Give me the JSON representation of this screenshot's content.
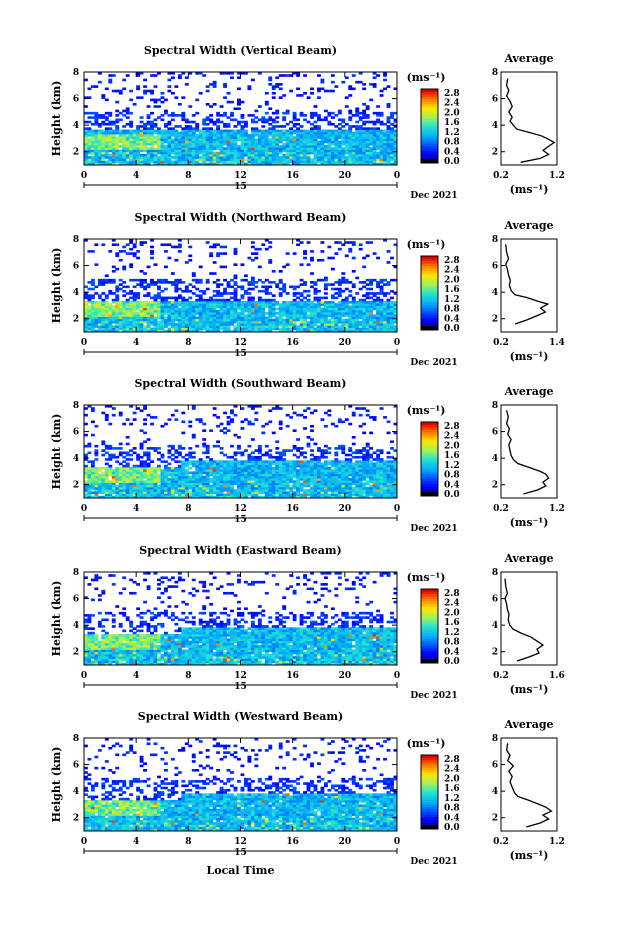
{
  "figure": {
    "xlabel": "Local Time",
    "date_label": "Dec 2021",
    "unit_label": "(ms⁻¹)",
    "avg_xlabel": "(ms⁻¹)",
    "avg_title": "Average",
    "ylabel": "Height (km)",
    "day_label": "15"
  },
  "chart_data": [
    {
      "type": "heatmap",
      "title": "Spectral Width (Vertical Beam)",
      "xlabel": "",
      "ylabel": "Height (km)",
      "x_ticks": [
        "0",
        "4",
        "8",
        "12",
        "16",
        "20",
        "0"
      ],
      "xlim": [
        0,
        24
      ],
      "y_ticks": [
        "2",
        "4",
        "6",
        "8"
      ],
      "ylim": [
        1,
        8
      ],
      "colorbar": {
        "ticks": [
          "0.0",
          "0.4",
          "0.8",
          "1.2",
          "1.6",
          "2.0",
          "2.4",
          "2.8"
        ],
        "range": [
          0,
          3.0
        ]
      },
      "average": {
        "x_ticks": [
          "0.2",
          "1.2"
        ],
        "xlim": [
          0.2,
          1.2
        ],
        "y_ticks": [
          "2",
          "4",
          "6",
          "8"
        ],
        "ylim": [
          1,
          8
        ],
        "profile": [
          [
            1.2,
            0.55
          ],
          [
            1.5,
            0.9
          ],
          [
            1.8,
            1.05
          ],
          [
            2.1,
            0.95
          ],
          [
            2.4,
            1.05
          ],
          [
            2.7,
            1.15
          ],
          [
            3.0,
            1.02
          ],
          [
            3.2,
            0.92
          ],
          [
            3.4,
            0.75
          ],
          [
            3.7,
            0.48
          ],
          [
            4.0,
            0.42
          ],
          [
            4.3,
            0.36
          ],
          [
            4.6,
            0.4
          ],
          [
            5.0,
            0.34
          ],
          [
            5.4,
            0.4
          ],
          [
            5.8,
            0.36
          ],
          [
            6.2,
            0.3
          ],
          [
            6.6,
            0.34
          ],
          [
            7.0,
            0.3
          ],
          [
            7.5,
            0.32
          ]
        ]
      }
    },
    {
      "type": "heatmap",
      "title": "Spectral Width (Northward Beam)",
      "xlabel": "",
      "ylabel": "Height (km)",
      "x_ticks": [
        "0",
        "4",
        "8",
        "12",
        "16",
        "20",
        "0"
      ],
      "xlim": [
        0,
        24
      ],
      "y_ticks": [
        "2",
        "4",
        "6",
        "8"
      ],
      "ylim": [
        1,
        8
      ],
      "colorbar": {
        "ticks": [
          "0.0",
          "0.4",
          "0.8",
          "1.2",
          "1.6",
          "2.0",
          "2.4",
          "2.8"
        ],
        "range": [
          0,
          3.0
        ]
      },
      "average": {
        "x_ticks": [
          "0.2",
          "1.4"
        ],
        "xlim": [
          0.2,
          1.4
        ],
        "y_ticks": [
          "2",
          "4",
          "6",
          "8"
        ],
        "ylim": [
          1,
          8
        ],
        "profile": [
          [
            1.6,
            0.5
          ],
          [
            1.9,
            0.75
          ],
          [
            2.2,
            0.95
          ],
          [
            2.5,
            1.15
          ],
          [
            2.8,
            1.05
          ],
          [
            3.1,
            1.2
          ],
          [
            3.3,
            1.0
          ],
          [
            3.6,
            0.75
          ],
          [
            3.8,
            0.5
          ],
          [
            4.1,
            0.42
          ],
          [
            4.5,
            0.38
          ],
          [
            4.9,
            0.4
          ],
          [
            5.3,
            0.36
          ],
          [
            5.7,
            0.34
          ],
          [
            6.1,
            0.3
          ],
          [
            6.5,
            0.36
          ],
          [
            7.0,
            0.32
          ],
          [
            7.6,
            0.3
          ]
        ]
      }
    },
    {
      "type": "heatmap",
      "title": "Spectral Width (Southward Beam)",
      "xlabel": "",
      "ylabel": "Height (km)",
      "x_ticks": [
        "0",
        "4",
        "8",
        "12",
        "16",
        "20",
        "0"
      ],
      "xlim": [
        0,
        24
      ],
      "y_ticks": [
        "2",
        "4",
        "6",
        "8"
      ],
      "ylim": [
        1,
        8
      ],
      "colorbar": {
        "ticks": [
          "0.0",
          "0.4",
          "0.8",
          "1.2",
          "1.6",
          "2.0",
          "2.4",
          "2.8"
        ],
        "range": [
          0,
          3.0
        ]
      },
      "average": {
        "x_ticks": [
          "0.2",
          "1.2"
        ],
        "xlim": [
          0.2,
          1.2
        ],
        "y_ticks": [
          "2",
          "4",
          "6",
          "8"
        ],
        "ylim": [
          1,
          8
        ],
        "profile": [
          [
            1.3,
            0.6
          ],
          [
            1.6,
            0.85
          ],
          [
            1.9,
            1.0
          ],
          [
            2.2,
            0.95
          ],
          [
            2.5,
            1.05
          ],
          [
            2.8,
            1.0
          ],
          [
            3.0,
            0.9
          ],
          [
            3.3,
            0.7
          ],
          [
            3.6,
            0.5
          ],
          [
            3.9,
            0.42
          ],
          [
            4.2,
            0.38
          ],
          [
            4.6,
            0.36
          ],
          [
            5.0,
            0.34
          ],
          [
            5.4,
            0.38
          ],
          [
            5.8,
            0.32
          ],
          [
            6.2,
            0.35
          ],
          [
            6.6,
            0.3
          ],
          [
            7.1,
            0.33
          ],
          [
            7.6,
            0.3
          ]
        ]
      }
    },
    {
      "type": "heatmap",
      "title": "Spectral Width (Eastward Beam)",
      "xlabel": "",
      "ylabel": "Height (km)",
      "x_ticks": [
        "0",
        "4",
        "8",
        "12",
        "16",
        "20",
        "0"
      ],
      "xlim": [
        0,
        24
      ],
      "y_ticks": [
        "2",
        "4",
        "6",
        "8"
      ],
      "ylim": [
        1,
        8
      ],
      "colorbar": {
        "ticks": [
          "0.0",
          "0.4",
          "0.8",
          "1.2",
          "1.6",
          "2.0",
          "2.4",
          "2.8"
        ],
        "range": [
          0,
          3.0
        ]
      },
      "average": {
        "x_ticks": [
          "0.2",
          "1.6"
        ],
        "xlim": [
          0.2,
          1.6
        ],
        "y_ticks": [
          "2",
          "4",
          "6",
          "8"
        ],
        "ylim": [
          1,
          8
        ],
        "profile": [
          [
            1.3,
            0.6
          ],
          [
            1.6,
            0.9
          ],
          [
            1.9,
            1.15
          ],
          [
            2.2,
            1.1
          ],
          [
            2.5,
            1.25
          ],
          [
            2.8,
            1.1
          ],
          [
            3.1,
            0.95
          ],
          [
            3.4,
            0.7
          ],
          [
            3.7,
            0.5
          ],
          [
            4.0,
            0.42
          ],
          [
            4.4,
            0.38
          ],
          [
            4.8,
            0.4
          ],
          [
            5.2,
            0.36
          ],
          [
            5.6,
            0.34
          ],
          [
            6.0,
            0.3
          ],
          [
            6.4,
            0.36
          ],
          [
            6.9,
            0.32
          ],
          [
            7.5,
            0.3
          ]
        ]
      }
    },
    {
      "type": "heatmap",
      "title": "Spectral Width (Westward Beam)",
      "xlabel": "Local Time",
      "ylabel": "Height (km)",
      "x_ticks": [
        "0",
        "4",
        "8",
        "12",
        "16",
        "20",
        "0"
      ],
      "xlim": [
        0,
        24
      ],
      "y_ticks": [
        "2",
        "4",
        "6",
        "8"
      ],
      "ylim": [
        1,
        8
      ],
      "colorbar": {
        "ticks": [
          "0.0",
          "0.4",
          "0.8",
          "1.2",
          "1.6",
          "2.0",
          "2.4",
          "2.8"
        ],
        "range": [
          0,
          3.0
        ]
      },
      "average": {
        "x_ticks": [
          "0.2",
          "1.2"
        ],
        "xlim": [
          0.2,
          1.2
        ],
        "y_ticks": [
          "2",
          "4",
          "6",
          "8"
        ],
        "ylim": [
          1,
          8
        ],
        "profile": [
          [
            1.3,
            0.65
          ],
          [
            1.6,
            0.9
          ],
          [
            1.9,
            1.05
          ],
          [
            2.2,
            0.95
          ],
          [
            2.5,
            1.1
          ],
          [
            2.8,
            1.0
          ],
          [
            3.0,
            0.88
          ],
          [
            3.3,
            0.7
          ],
          [
            3.6,
            0.5
          ],
          [
            3.9,
            0.44
          ],
          [
            4.3,
            0.4
          ],
          [
            4.7,
            0.36
          ],
          [
            5.1,
            0.4
          ],
          [
            5.5,
            0.34
          ],
          [
            5.9,
            0.42
          ],
          [
            6.3,
            0.32
          ],
          [
            6.7,
            0.36
          ],
          [
            7.1,
            0.3
          ],
          [
            7.6,
            0.32
          ]
        ]
      }
    }
  ]
}
